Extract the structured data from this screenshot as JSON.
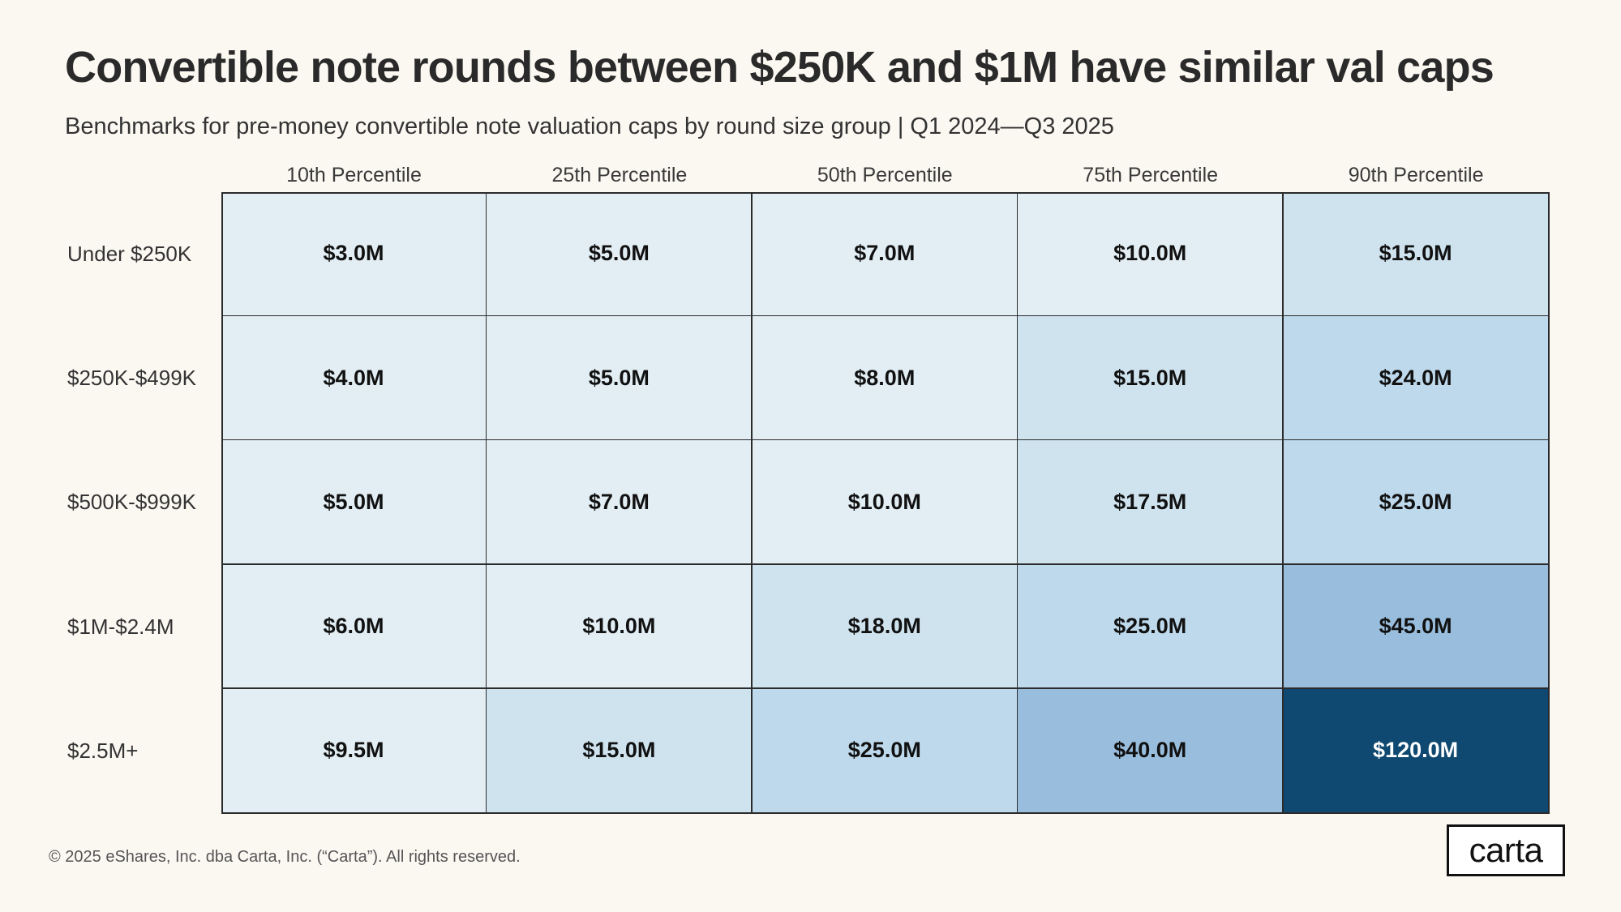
{
  "title": "Convertible note rounds between $250K and $1M have similar val caps",
  "subtitle": "Benchmarks for pre-money convertible note valuation caps by round size group | Q1 2024—Q3 2025",
  "footer": "© 2025 eShares, Inc. dba Carta, Inc. (“Carta”). All rights reserved.",
  "logo_text": "carta",
  "chart_data": {
    "type": "heatmap",
    "title": "Convertible note rounds between $250K and $1M have similar val caps",
    "subtitle": "Benchmarks for pre-money convertible note valuation caps by round size group | Q1 2024—Q3 2025",
    "columns": [
      "10th Percentile",
      "25th Percentile",
      "50th Percentile",
      "75th Percentile",
      "90th Percentile"
    ],
    "rows": [
      "Under $250K",
      "$250K-$499K",
      "$500K-$999K",
      "$1M-$2.4M",
      "$2.5M+"
    ],
    "labels": [
      [
        "$3.0M",
        "$5.0M",
        "$7.0M",
        "$10.0M",
        "$15.0M"
      ],
      [
        "$4.0M",
        "$5.0M",
        "$8.0M",
        "$15.0M",
        "$24.0M"
      ],
      [
        "$5.0M",
        "$7.0M",
        "$10.0M",
        "$17.5M",
        "$25.0M"
      ],
      [
        "$6.0M",
        "$10.0M",
        "$18.0M",
        "$25.0M",
        "$45.0M"
      ],
      [
        "$9.5M",
        "$15.0M",
        "$25.0M",
        "$40.0M",
        "$120.0M"
      ]
    ],
    "values": [
      [
        3.0,
        5.0,
        7.0,
        10.0,
        15.0
      ],
      [
        4.0,
        5.0,
        8.0,
        15.0,
        24.0
      ],
      [
        5.0,
        7.0,
        10.0,
        17.5,
        25.0
      ],
      [
        6.0,
        10.0,
        18.0,
        25.0,
        45.0
      ],
      [
        9.5,
        15.0,
        25.0,
        40.0,
        120.0
      ]
    ],
    "unit": "M",
    "colors": {
      "low": "#e2eef4",
      "mid_low": "#cfe3ef",
      "mid": "#bed9eb",
      "mid_high": "#99bedd",
      "high": "#0f4870"
    }
  }
}
